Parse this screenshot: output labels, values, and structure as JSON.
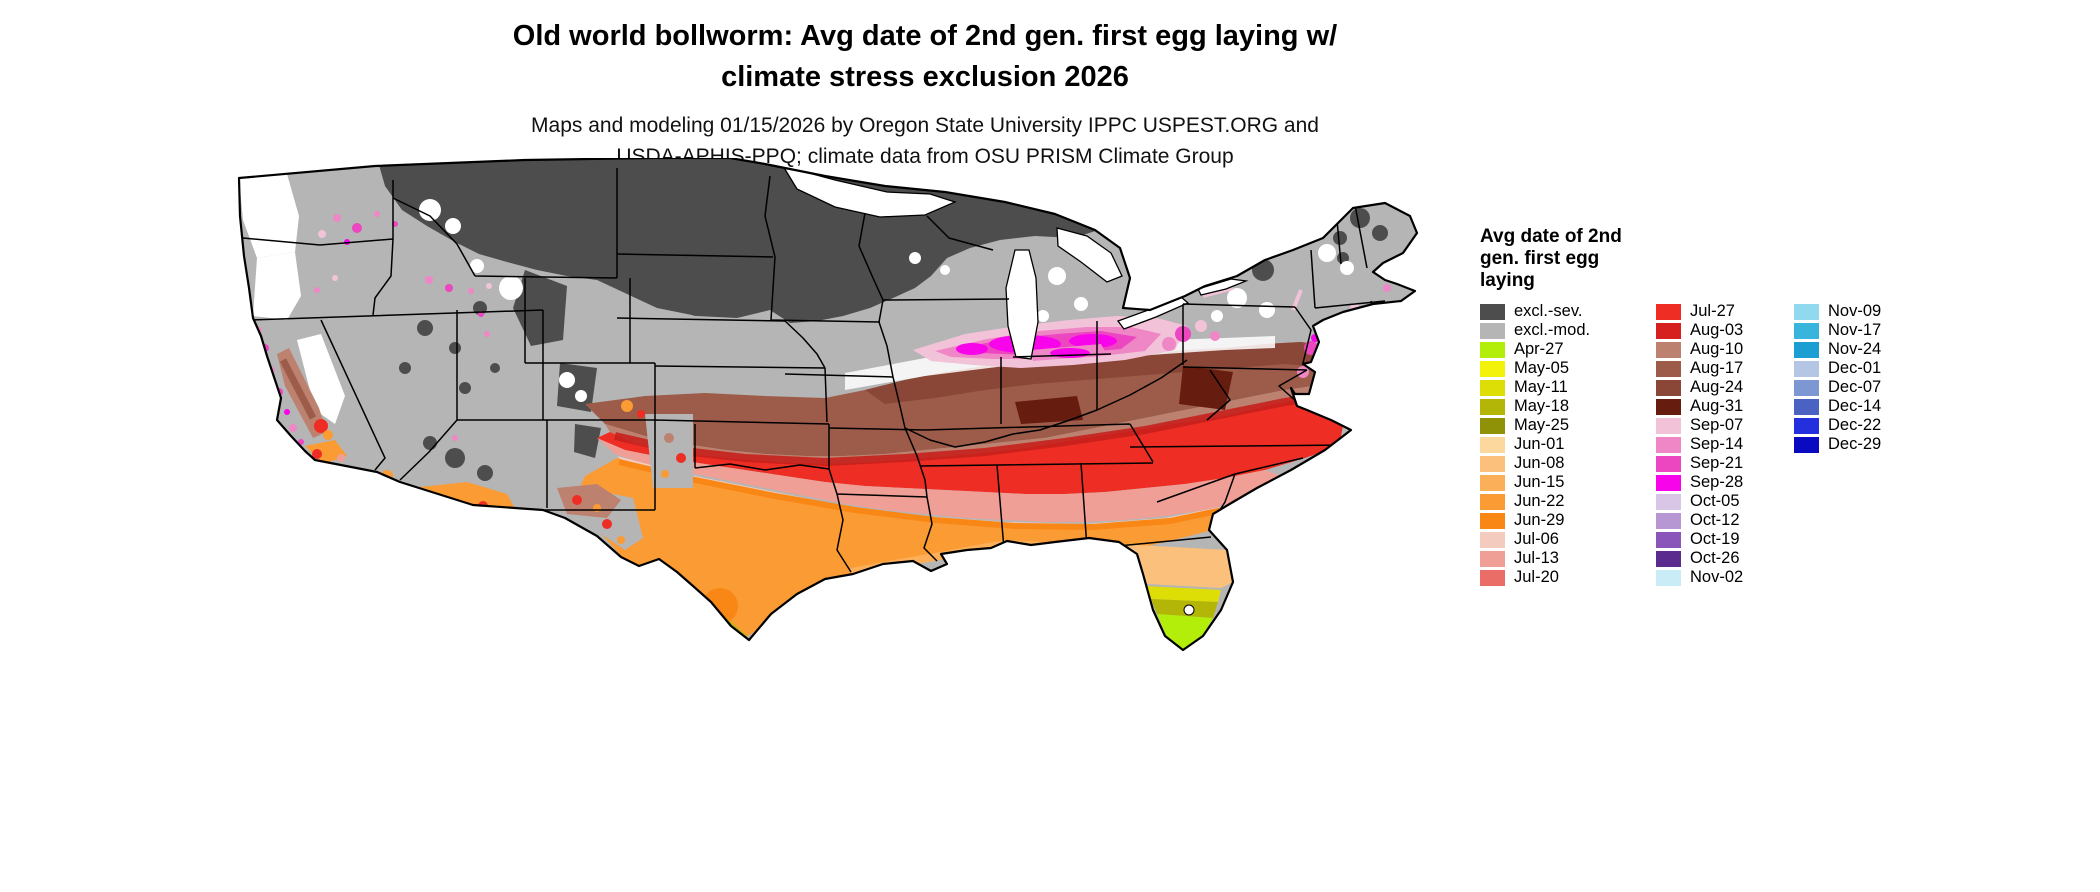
{
  "title": {
    "line1": "Old world bollworm: Avg date of 2nd gen. first egg laying w/",
    "line2": "climate stress exclusion 2026"
  },
  "subtitle": {
    "line1": "Maps and modeling 01/15/2026 by Oregon State University IPPC USPEST.ORG and",
    "line2": "USDA-APHIS-PPQ; climate data from OSU PRISM Climate Group"
  },
  "legend": {
    "title_lines": [
      "Avg date of 2nd",
      "gen. first egg",
      "laying"
    ],
    "columns": [
      {
        "items": [
          {
            "label": "excl.-sev.",
            "color": "#4d4d4d"
          },
          {
            "label": "excl.-mod.",
            "color": "#b5b5b5"
          },
          {
            "label": "Apr-27",
            "color": "#b2ee09"
          },
          {
            "label": "May-05",
            "color": "#f2f20a"
          },
          {
            "label": "May-11",
            "color": "#dede07"
          },
          {
            "label": "May-18",
            "color": "#b4b607"
          },
          {
            "label": "May-25",
            "color": "#8f9207"
          },
          {
            "label": "Jun-01",
            "color": "#fcd79e"
          },
          {
            "label": "Jun-08",
            "color": "#fbc17c"
          },
          {
            "label": "Jun-15",
            "color": "#fbaf58"
          },
          {
            "label": "Jun-22",
            "color": "#fb9b33"
          },
          {
            "label": "Jun-29",
            "color": "#f98716"
          },
          {
            "label": "Jul-06",
            "color": "#f3cbbf"
          },
          {
            "label": "Jul-13",
            "color": "#ef9f96"
          },
          {
            "label": "Jul-20",
            "color": "#ea6e67"
          }
        ]
      },
      {
        "items": [
          {
            "label": "Jul-27",
            "color": "#ee2d24"
          },
          {
            "label": "Aug-03",
            "color": "#d6201f"
          },
          {
            "label": "Aug-10",
            "color": "#bd8170"
          },
          {
            "label": "Aug-17",
            "color": "#9d5c49"
          },
          {
            "label": "Aug-24",
            "color": "#8a4637"
          },
          {
            "label": "Aug-31",
            "color": "#661d10"
          },
          {
            "label": "Sep-07",
            "color": "#f2c3d8"
          },
          {
            "label": "Sep-14",
            "color": "#ef87c6"
          },
          {
            "label": "Sep-21",
            "color": "#ec46c0"
          },
          {
            "label": "Sep-28",
            "color": "#f704eb"
          },
          {
            "label": "Oct-05",
            "color": "#d9c6e7"
          },
          {
            "label": "Oct-12",
            "color": "#b696d3"
          },
          {
            "label": "Oct-19",
            "color": "#8a56ba"
          },
          {
            "label": "Oct-26",
            "color": "#5c2b8e"
          },
          {
            "label": "Nov-02",
            "color": "#c9ecf6"
          }
        ]
      },
      {
        "items": [
          {
            "label": "Nov-09",
            "color": "#90d9ef"
          },
          {
            "label": "Nov-17",
            "color": "#39b4dd"
          },
          {
            "label": "Nov-24",
            "color": "#1b9ed1"
          },
          {
            "label": "Dec-01",
            "color": "#b4c6e4"
          },
          {
            "label": "Dec-07",
            "color": "#7d97d3"
          },
          {
            "label": "Dec-14",
            "color": "#4a63c2"
          },
          {
            "label": "Dec-22",
            "color": "#2430dd"
          },
          {
            "label": "Dec-29",
            "color": "#0a0ac0"
          }
        ]
      }
    ]
  },
  "map": {
    "description": "Contiguous United States raster map colored by average date of second generation first egg laying; gray areas are climate-stress exclusions"
  }
}
